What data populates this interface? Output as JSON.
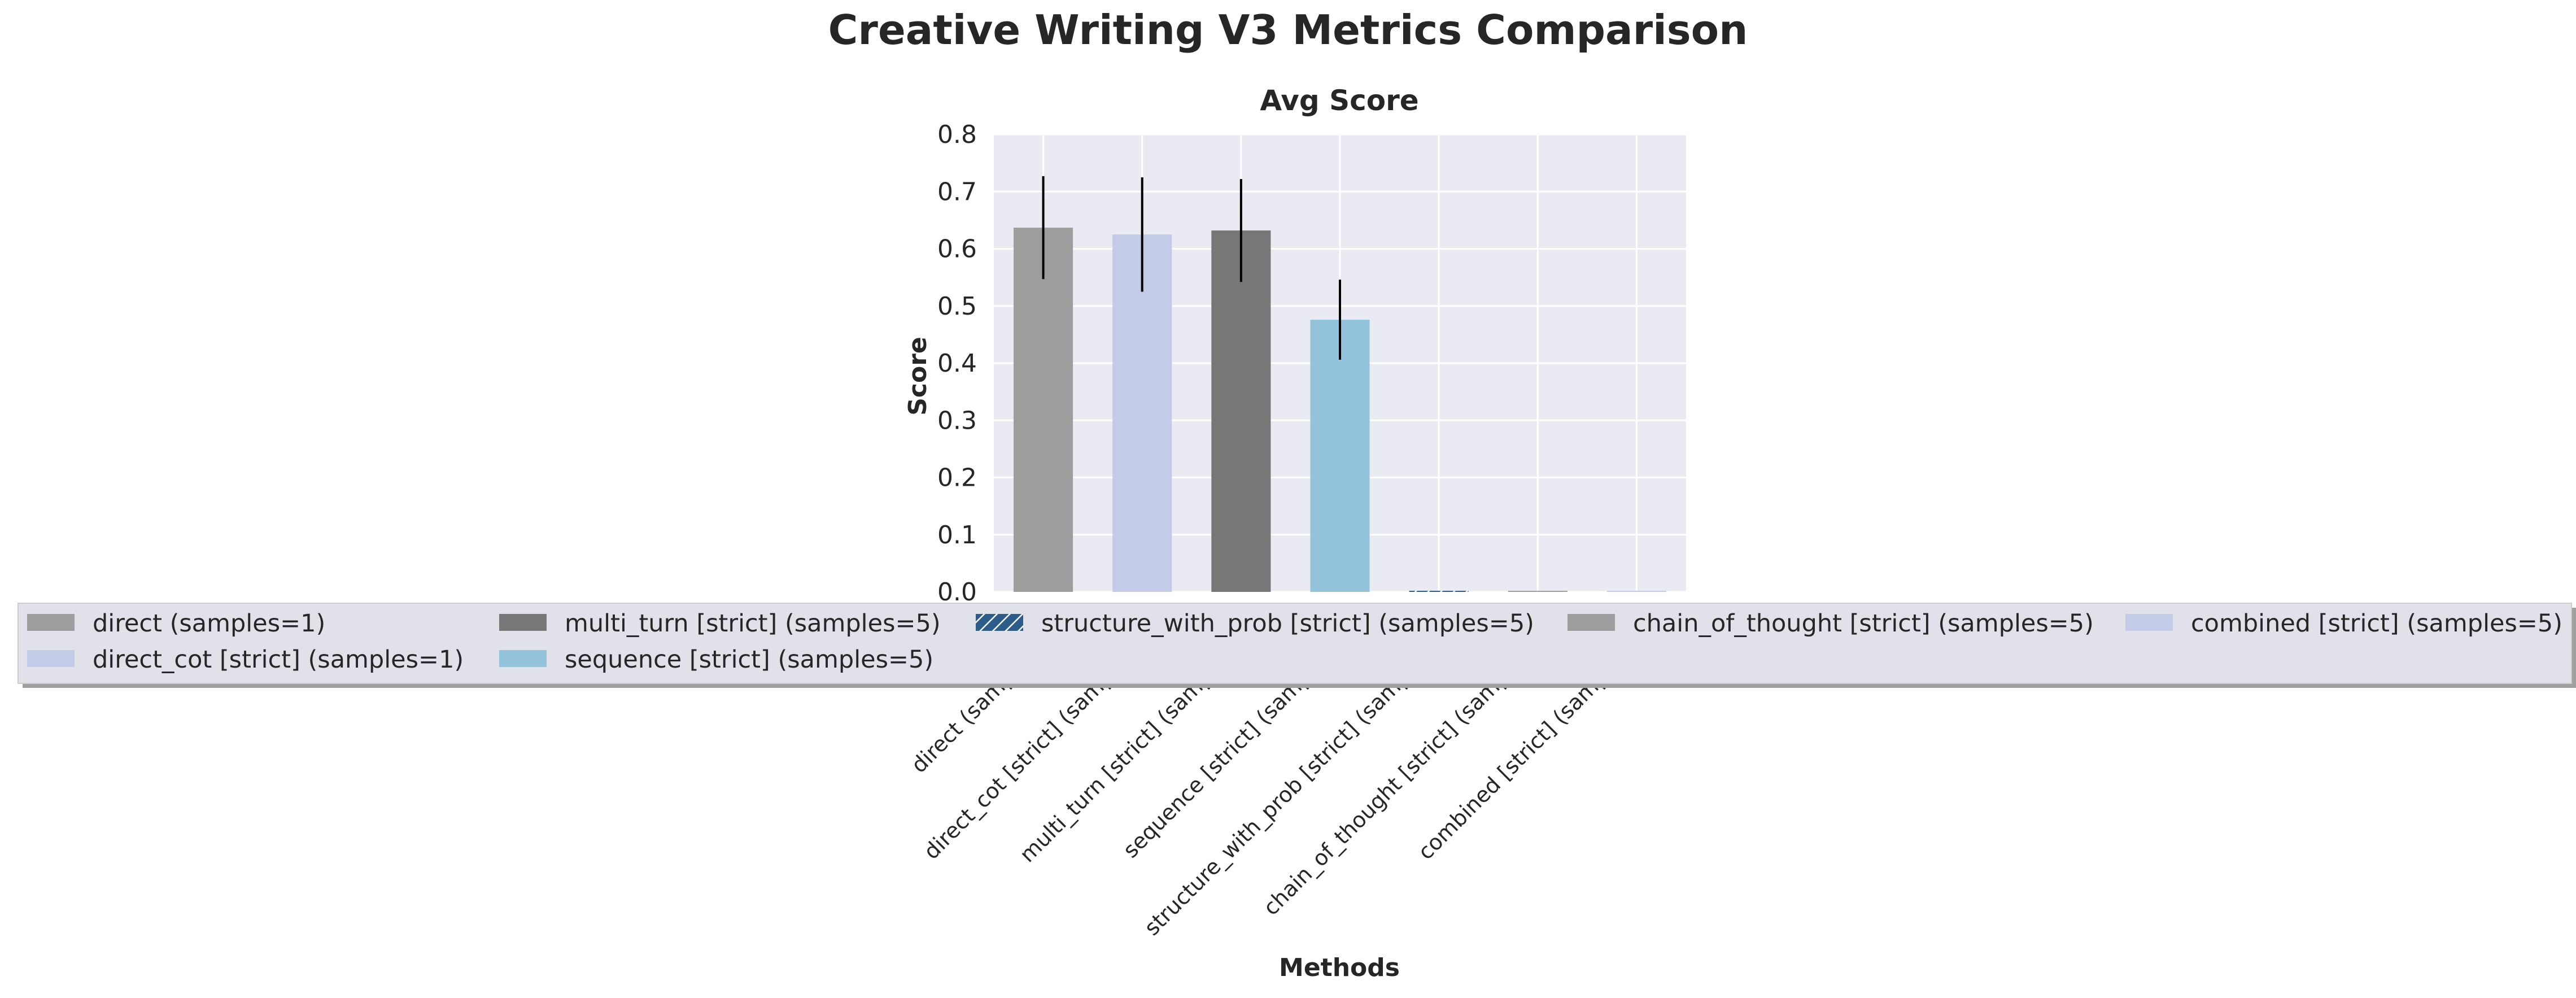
{
  "chart_data": {
    "type": "bar",
    "title": "Creative Writing V3 Metrics Comparison",
    "subplot_title": "Avg Score",
    "xlabel": "Methods",
    "ylabel": "Score",
    "ylim": [
      0,
      0.8
    ],
    "yticks": [
      "0.0",
      "0.1",
      "0.2",
      "0.3",
      "0.4",
      "0.5",
      "0.6",
      "0.7",
      "0.8"
    ],
    "grid": true,
    "legend_position": "bottom, overlapping x tick labels",
    "categories": [
      "direct (samples=1)",
      "direct_cot [strict] (samples=1)",
      "multi_turn [strict] (samples=5)",
      "sequence [strict] (samples=5)",
      "structure_with_prob [strict] (samples=5)",
      "chain_of_thought [strict] (samples=5)",
      "combined [strict] (samples=5)"
    ],
    "values": [
      0.637,
      0.625,
      0.632,
      0.476,
      0.0,
      0.0,
      0.0
    ],
    "errors": [
      0.09,
      0.1,
      0.09,
      0.07,
      0.0,
      0.0,
      0.0
    ],
    "colors": [
      "#9e9e9e",
      "#c3cbe6",
      "#777777",
      "#93c4dc",
      "#2b5c8a",
      "#9e9e9e",
      "#c3cbe6"
    ],
    "legend": [
      {
        "label": "direct (samples=1)",
        "color": "#9e9e9e",
        "hatch": false
      },
      {
        "label": "direct_cot [strict] (samples=1)",
        "color": "#c3cbe6",
        "hatch": false
      },
      {
        "label": "multi_turn [strict] (samples=5)",
        "color": "#777777",
        "hatch": false
      },
      {
        "label": "sequence [strict] (samples=5)",
        "color": "#93c4dc",
        "hatch": false
      },
      {
        "label": "structure_with_prob [strict] (samples=5)",
        "color": "#2b5c8a",
        "hatch": true
      },
      {
        "label": "chain_of_thought [strict] (samples=5)",
        "color": "#9e9e9e",
        "hatch": false
      },
      {
        "label": "combined [strict] (samples=5)",
        "color": "#c3cbe6",
        "hatch": false
      }
    ]
  }
}
